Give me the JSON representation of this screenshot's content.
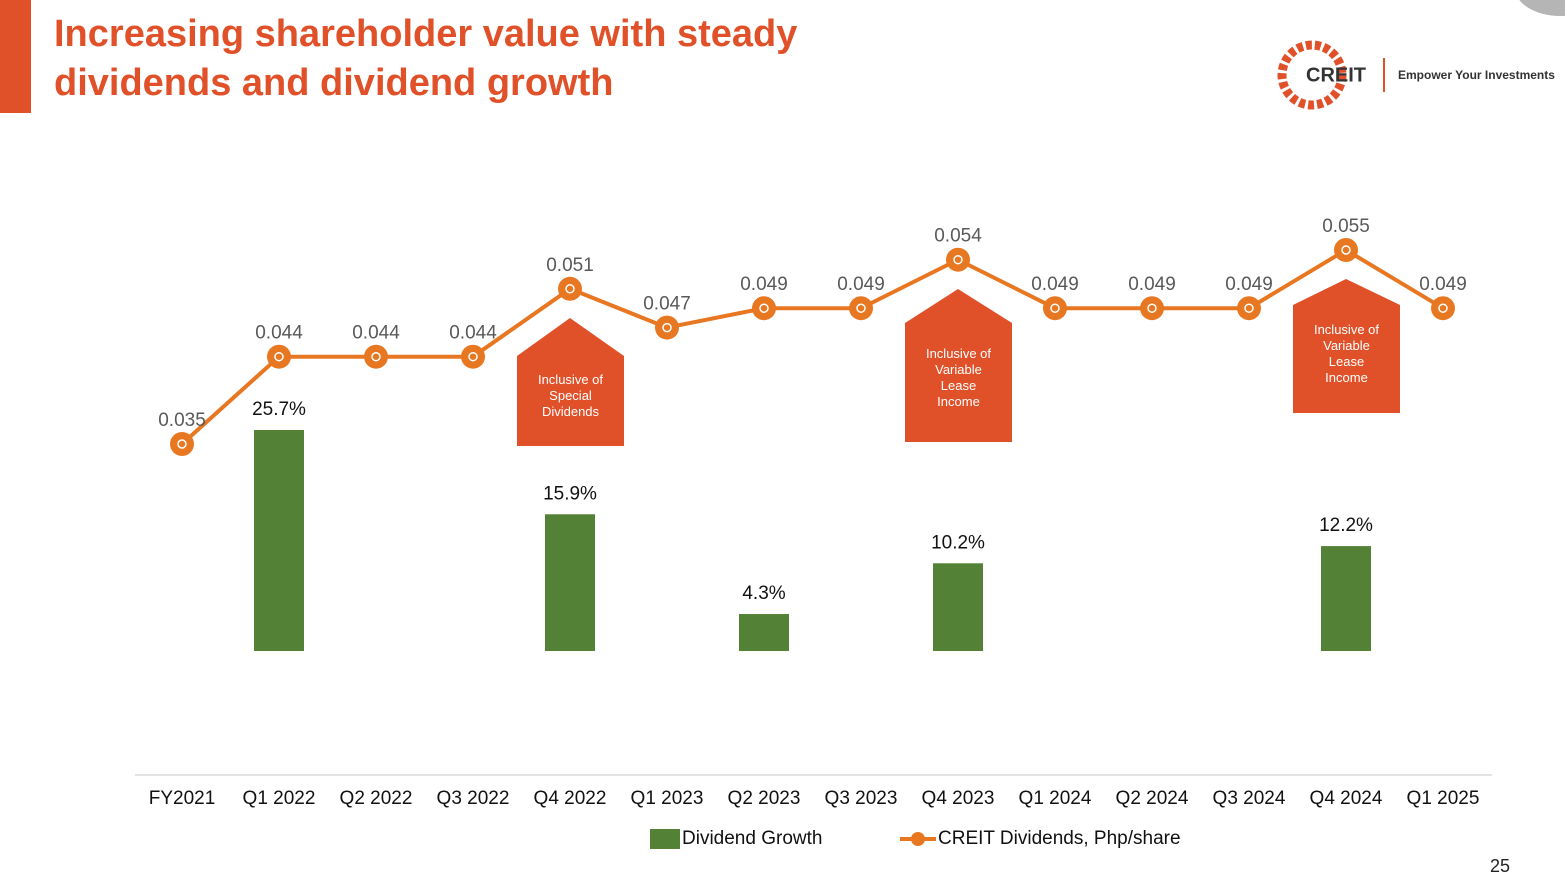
{
  "header": {
    "title": "Increasing shareholder value with steady dividends and dividend growth",
    "logo": "CREIT",
    "tagline": "Empower Your Investments"
  },
  "page_number": 25,
  "chart_data": {
    "type": "bar-line",
    "categories": [
      "FY2021",
      "Q1 2022",
      "Q2 2022",
      "Q3 2022",
      "Q4 2022",
      "Q1 2023",
      "Q2 2023",
      "Q3 2023",
      "Q4 2023",
      "Q1 2024",
      "Q2 2024",
      "Q3 2024",
      "Q4 2024",
      "Q1 2025"
    ],
    "series": [
      {
        "name": "Dividend Growth",
        "type": "bar",
        "color": "#538135",
        "values": [
          null,
          25.7,
          null,
          null,
          15.9,
          null,
          4.3,
          null,
          10.2,
          null,
          null,
          null,
          12.2,
          null
        ],
        "value_labels": [
          null,
          "25.7%",
          null,
          null,
          "15.9%",
          null,
          "4.3%",
          null,
          "10.2%",
          null,
          null,
          null,
          "12.2%",
          null
        ]
      },
      {
        "name": "CREIT Dividends, Php/share",
        "type": "line",
        "color": "#e87722",
        "values": [
          0.035,
          0.044,
          0.044,
          0.044,
          0.051,
          0.047,
          0.049,
          0.049,
          0.054,
          0.049,
          0.049,
          0.049,
          0.055,
          0.049
        ]
      }
    ],
    "annotations": [
      "Inclusive of Special Dividends",
      "Inclusive of Variable Lease Income",
      "Inclusive of Variable Lease Income"
    ]
  }
}
